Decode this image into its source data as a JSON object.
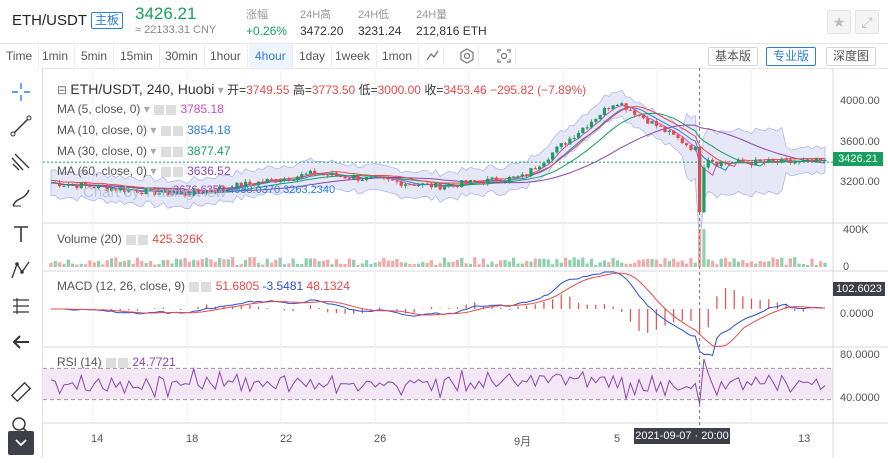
{
  "header": {
    "pair": "ETH/USDT",
    "board_badge": "主板",
    "last_price": "3426.21",
    "cny_price": "≈ 22133.31 CNY",
    "stats": [
      {
        "label": "涨幅",
        "value": "+0.26%"
      },
      {
        "label": "24H高",
        "value": "3472.20"
      },
      {
        "label": "24H低",
        "value": "3231.24"
      },
      {
        "label": "24H量",
        "value": "212,816 ETH"
      }
    ]
  },
  "toolbar": {
    "intervals": [
      "Time",
      "1min",
      "5min",
      "15min",
      "30min",
      "1hour",
      "4hour",
      "1day",
      "1week",
      "1mon"
    ],
    "active_interval": "4hour",
    "views": [
      "基本版",
      "专业版",
      "深度图"
    ],
    "active_view": "专业版"
  },
  "chart": {
    "title": "ETH/USDT, 240, Huobi",
    "ohlc": {
      "open_label": "开=",
      "open": "3749.55",
      "high_label": "高=",
      "high": "3773.50",
      "low_label": "低=",
      "low": "3000.00",
      "close_label": "收=",
      "close": "3453.46",
      "change": "−295.82 (−7.89%)"
    },
    "ma_rows": [
      {
        "label": "MA (5, close, 0)",
        "value": "3785.18",
        "color": "#d04ac8"
      },
      {
        "label": "MA (10, close, 0)",
        "value": "3854.18",
        "color": "#2b7fd6"
      },
      {
        "label": "MA (30, close, 0)",
        "value": "3877.47",
        "color": "#17a05d"
      },
      {
        "label": "MA (60, close, 0)",
        "value": "3636.52",
        "color": "#8e44ad"
      }
    ],
    "bb_values": [
      "3676.6355",
      "4088.0370",
      "3263.2340"
    ],
    "watermark": "Chart by TradingView",
    "price_axis": [
      "4000.00",
      "3600.00",
      "3200.00"
    ],
    "current_price_tag": "3426.21",
    "volume": {
      "label": "Volume (20)",
      "value": "425.326K",
      "axis": [
        "400K",
        "0"
      ]
    },
    "macd": {
      "label": "MACD (12, 26, close, 9)",
      "values": [
        "51.6805",
        "-3.5481",
        "48.1324"
      ],
      "axis": [
        "0.0000"
      ],
      "tag": "102.6023"
    },
    "rsi": {
      "label": "RSI (14)",
      "value": "24.7721",
      "axis": [
        "80.0000",
        "40.0000"
      ]
    },
    "time_axis": [
      "14",
      "18",
      "22",
      "26",
      "9月",
      "5",
      "9",
      "13"
    ],
    "crosshair_time": "2021-09-07 · 20:00"
  },
  "chart_data": {
    "type": "candlestick",
    "title": "ETH/USDT, 240, Huobi",
    "x": [
      "14",
      "18",
      "22",
      "26",
      "9月",
      "5",
      "9",
      "13"
    ],
    "close_approx": [
      3250,
      3150,
      3330,
      3220,
      3300,
      3950,
      3420,
      3426
    ],
    "ylim": [
      2950,
      4100
    ],
    "indicators": [
      "MA5",
      "MA10",
      "MA30",
      "MA60",
      "BB",
      "Volume",
      "MACD",
      "RSI"
    ]
  }
}
